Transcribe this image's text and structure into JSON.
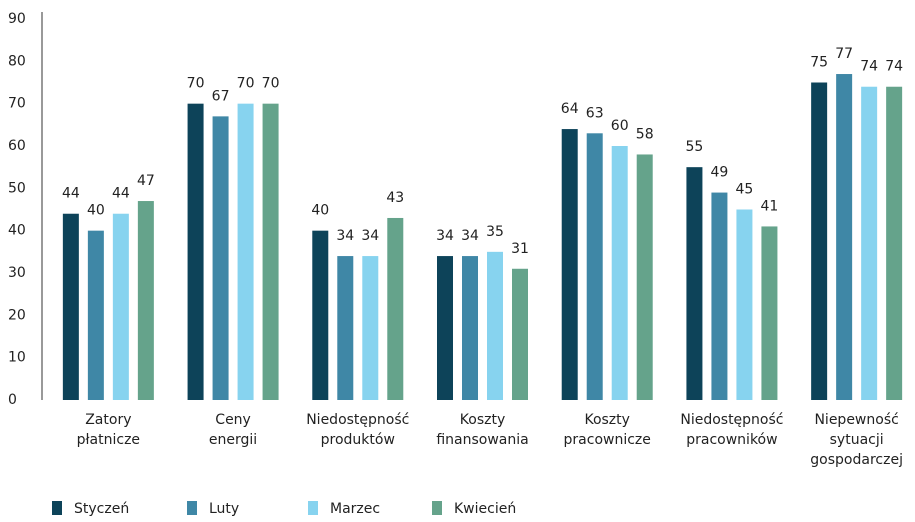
{
  "chart_data": {
    "type": "bar",
    "categories": [
      [
        "Zatory",
        "płatnicze"
      ],
      [
        "Ceny",
        "energii"
      ],
      [
        "Niedostępność",
        "produktów"
      ],
      [
        "Koszty",
        "finansowania"
      ],
      [
        "Koszty",
        "pracownicze"
      ],
      [
        "Niedostępność",
        "pracowników"
      ],
      [
        "Niepewność",
        "sytuacji",
        "gospodarczej"
      ]
    ],
    "series": [
      {
        "name": "Styczeń",
        "color": "#0d4359",
        "values": [
          44,
          70,
          40,
          34,
          64,
          55,
          75
        ]
      },
      {
        "name": "Luty",
        "color": "#3f87a6",
        "values": [
          40,
          67,
          34,
          34,
          63,
          49,
          77
        ]
      },
      {
        "name": "Marzec",
        "color": "#87d3ef",
        "values": [
          44,
          70,
          34,
          35,
          60,
          45,
          74
        ]
      },
      {
        "name": "Kwiecień",
        "color": "#65a38b",
        "values": [
          47,
          70,
          43,
          31,
          58,
          41,
          74
        ]
      }
    ],
    "ylim": [
      0,
      90
    ],
    "yticks": [
      0,
      10,
      20,
      30,
      40,
      50,
      60,
      70,
      80,
      90
    ],
    "grid": false,
    "legend": "bottom-left"
  }
}
